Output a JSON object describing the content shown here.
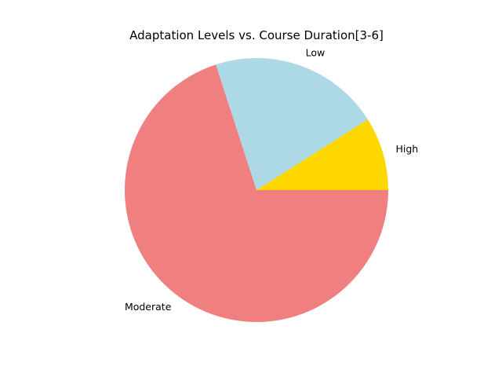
{
  "chart_data": {
    "type": "pie",
    "title": "Adaptation Levels vs. Course Duration[3-6]",
    "slices": [
      {
        "label": "High",
        "value": 9,
        "color": "#FFD700"
      },
      {
        "label": "Low",
        "value": 21,
        "color": "#ADD8E6"
      },
      {
        "label": "Moderate",
        "value": 70,
        "color": "#F08080"
      }
    ],
    "start_angle_deg": 0,
    "direction": "counterclockwise",
    "legend": "none"
  }
}
